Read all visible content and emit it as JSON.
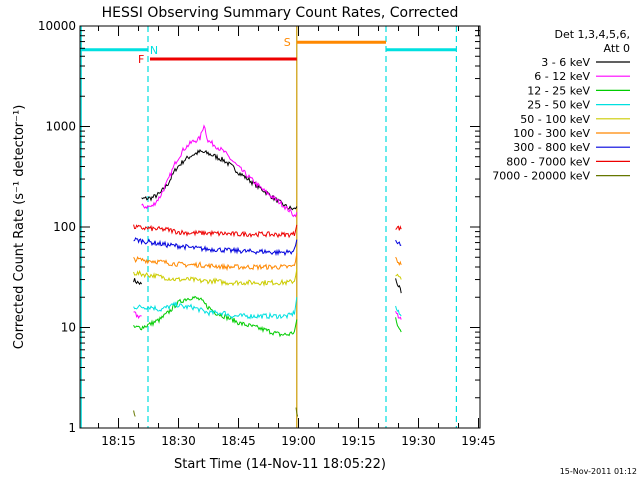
{
  "chart_data": {
    "type": "line",
    "title": "HESSI Observing Summary Count Rates, Corrected",
    "xlabel": "Start Time (14-Nov-11 18:05:22)",
    "ylabel": "Corrected Count Rate (s⁻¹ detector⁻¹)",
    "xlim_minutes": [
      0,
      100
    ],
    "ylim": [
      1,
      10000
    ],
    "yscale": "log",
    "x_ticks": [
      {
        "t": 9.63,
        "label": "18:15"
      },
      {
        "t": 24.63,
        "label": "18:30"
      },
      {
        "t": 39.63,
        "label": "18:45"
      },
      {
        "t": 54.63,
        "label": "19:00"
      },
      {
        "t": 69.63,
        "label": "19:15"
      },
      {
        "t": 84.63,
        "label": "19:30"
      },
      {
        "t": 99.63,
        "label": "19:45"
      }
    ],
    "y_ticks": [
      {
        "v": 1,
        "label": "1"
      },
      {
        "v": 10,
        "label": "10"
      },
      {
        "v": 100,
        "label": "100"
      },
      {
        "v": 1000,
        "label": "1000"
      },
      {
        "v": 10000,
        "label": "10000"
      }
    ],
    "legend_header": [
      "Det 1,3,4,5,6,",
      "Att 0"
    ],
    "legend_placement": "right",
    "timestamp": "15-Nov-2011 01:12",
    "series": [
      {
        "name": "3 - 6 keV",
        "color": "#000000",
        "segments": [
          [
            [
              13.4,
              30
            ],
            [
              14.4,
              28
            ],
            [
              15.4,
              27
            ]
          ],
          [
            [
              15.4,
              190
            ],
            [
              18,
              195
            ],
            [
              20,
              215
            ],
            [
              22,
              270
            ],
            [
              24,
              380
            ],
            [
              26,
              460
            ],
            [
              28,
              520
            ],
            [
              30,
              560
            ],
            [
              32,
              540
            ],
            [
              34,
              500
            ],
            [
              36,
              460
            ],
            [
              38,
              400
            ],
            [
              40,
              340
            ],
            [
              42,
              300
            ],
            [
              44,
              260
            ],
            [
              46,
              230
            ],
            [
              48,
              200
            ],
            [
              50,
              175
            ],
            [
              52,
              155
            ],
            [
              53.6,
              150
            ],
            [
              54.2,
              160
            ]
          ],
          [
            [
              78.9,
              30
            ],
            [
              79.6,
              26
            ],
            [
              80.3,
              22
            ]
          ]
        ]
      },
      {
        "name": "6 - 12 keV",
        "color": "#ff00ff",
        "segments": [
          [
            [
              13.4,
              14
            ],
            [
              14.4,
              13
            ],
            [
              15.4,
              13
            ]
          ],
          [
            [
              15.4,
              160
            ],
            [
              18,
              160
            ],
            [
              20,
              200
            ],
            [
              22,
              290
            ],
            [
              24,
              450
            ],
            [
              26,
              600
            ],
            [
              28,
              700
            ],
            [
              30,
              760
            ],
            [
              31,
              1050
            ],
            [
              32,
              720
            ],
            [
              34,
              640
            ],
            [
              36,
              560
            ],
            [
              38,
              460
            ],
            [
              40,
              380
            ],
            [
              42,
              320
            ],
            [
              44,
              270
            ],
            [
              46,
              230
            ],
            [
              48,
              200
            ],
            [
              50,
              175
            ],
            [
              52,
              150
            ],
            [
              53.6,
              130
            ],
            [
              54.2,
              140
            ]
          ],
          [
            [
              78.9,
              14
            ],
            [
              79.6,
              13
            ],
            [
              80.3,
              12
            ]
          ]
        ]
      },
      {
        "name": "12 - 25 keV",
        "color": "#00cc00",
        "segments": [
          [
            [
              13.4,
              10
            ],
            [
              15.4,
              10
            ],
            [
              18,
              11
            ],
            [
              20,
              12
            ],
            [
              22,
              14
            ],
            [
              24,
              17
            ],
            [
              26,
              19
            ],
            [
              28,
              20
            ],
            [
              30,
              19
            ],
            [
              32,
              16
            ],
            [
              34,
              14
            ],
            [
              36,
              13
            ],
            [
              38,
              12
            ],
            [
              40,
              11
            ],
            [
              42,
              10.5
            ],
            [
              44,
              10
            ],
            [
              46,
              9.5
            ],
            [
              48,
              9
            ],
            [
              50,
              8.5
            ],
            [
              52,
              8.5
            ],
            [
              53.6,
              9
            ],
            [
              54.2,
              12
            ]
          ],
          [
            [
              78.9,
              12
            ],
            [
              79.6,
              10
            ],
            [
              80.3,
              9
            ]
          ]
        ]
      },
      {
        "name": "25 - 50 keV",
        "color": "#00e0e0",
        "segments": [
          [
            [
              13.4,
              16
            ],
            [
              15.4,
              16
            ],
            [
              18,
              16
            ],
            [
              20,
              15
            ],
            [
              22,
              16
            ],
            [
              24,
              17
            ],
            [
              26,
              16
            ],
            [
              28,
              16
            ],
            [
              30,
              15
            ],
            [
              32,
              14
            ],
            [
              34,
              14
            ],
            [
              36,
              14
            ],
            [
              38,
              13
            ],
            [
              40,
              13
            ],
            [
              42,
              13
            ],
            [
              44,
              13
            ],
            [
              46,
              13
            ],
            [
              48,
              13
            ],
            [
              50,
              13
            ],
            [
              52,
              13
            ],
            [
              53.6,
              14
            ],
            [
              54.2,
              20
            ]
          ],
          [
            [
              78.9,
              16
            ],
            [
              79.6,
              14
            ],
            [
              80.3,
              13
            ]
          ]
        ]
      },
      {
        "name": "50 - 100 keV",
        "color": "#cccc00",
        "segments": [
          [
            [
              13.4,
              35
            ],
            [
              15.4,
              34
            ],
            [
              18,
              33
            ],
            [
              20,
              32
            ],
            [
              22,
              31
            ],
            [
              24,
              30
            ],
            [
              26,
              30
            ],
            [
              28,
              30
            ],
            [
              30,
              29
            ],
            [
              32,
              29
            ],
            [
              34,
              29
            ],
            [
              36,
              28
            ],
            [
              38,
              28
            ],
            [
              40,
              28
            ],
            [
              42,
              28
            ],
            [
              44,
              28
            ],
            [
              46,
              28
            ],
            [
              48,
              28
            ],
            [
              50,
              28
            ],
            [
              52,
              28
            ],
            [
              53.6,
              29
            ],
            [
              54.2,
              38
            ]
          ],
          [
            [
              78.9,
              34
            ],
            [
              79.6,
              32
            ],
            [
              80.3,
              30
            ]
          ]
        ]
      },
      {
        "name": "100 - 300 keV",
        "color": "#ff8800",
        "segments": [
          [
            [
              13.4,
              48
            ],
            [
              15.4,
              47
            ],
            [
              18,
              46
            ],
            [
              20,
              45
            ],
            [
              22,
              44
            ],
            [
              24,
              43
            ],
            [
              26,
              42
            ],
            [
              28,
              42
            ],
            [
              30,
              42
            ],
            [
              32,
              41
            ],
            [
              34,
              41
            ],
            [
              36,
              40
            ],
            [
              38,
              40
            ],
            [
              40,
              40
            ],
            [
              42,
              40
            ],
            [
              44,
              40
            ],
            [
              46,
              40
            ],
            [
              48,
              40
            ],
            [
              50,
              40
            ],
            [
              52,
              40
            ],
            [
              53.6,
              41
            ],
            [
              54.2,
              55
            ]
          ],
          [
            [
              78.9,
              48
            ],
            [
              79.6,
              45
            ],
            [
              80.3,
              42
            ]
          ]
        ]
      },
      {
        "name": "300 - 800 keV",
        "color": "#0000dd",
        "segments": [
          [
            [
              13.4,
              75
            ],
            [
              15.4,
              73
            ],
            [
              18,
              70
            ],
            [
              20,
              68
            ],
            [
              22,
              66
            ],
            [
              24,
              65
            ],
            [
              26,
              64
            ],
            [
              28,
              62
            ],
            [
              30,
              61
            ],
            [
              32,
              60
            ],
            [
              34,
              60
            ],
            [
              36,
              59
            ],
            [
              38,
              58
            ],
            [
              40,
              58
            ],
            [
              42,
              57
            ],
            [
              44,
              57
            ],
            [
              46,
              57
            ],
            [
              48,
              56
            ],
            [
              50,
              56
            ],
            [
              52,
              56
            ],
            [
              53.6,
              58
            ],
            [
              54.2,
              75
            ]
          ],
          [
            [
              78.9,
              75
            ],
            [
              79.6,
              70
            ],
            [
              80.3,
              66
            ]
          ]
        ]
      },
      {
        "name": "800 - 7000 keV",
        "color": "#ee0000",
        "segments": [
          [
            [
              13.4,
              100
            ],
            [
              15.4,
              98
            ],
            [
              18,
              96
            ],
            [
              20,
              95
            ],
            [
              22,
              94
            ],
            [
              24,
              90
            ],
            [
              26,
              88
            ],
            [
              28,
              87
            ],
            [
              30,
              87
            ],
            [
              32,
              87
            ],
            [
              34,
              86
            ],
            [
              36,
              86
            ],
            [
              38,
              85
            ],
            [
              40,
              85
            ],
            [
              42,
              85
            ],
            [
              44,
              85
            ],
            [
              46,
              85
            ],
            [
              48,
              84
            ],
            [
              50,
              84
            ],
            [
              52,
              84
            ],
            [
              53.6,
              85
            ],
            [
              54.2,
              105
            ]
          ],
          [
            [
              78.9,
              100
            ],
            [
              79.6,
              98
            ],
            [
              80.3,
              95
            ]
          ]
        ]
      },
      {
        "name": "7000 - 20000 keV",
        "color": "#667700",
        "segments": [
          [
            [
              13.4,
              1.5
            ],
            [
              13.8,
              1.3
            ]
          ],
          [
            [
              54.0,
              1.6
            ],
            [
              54.4,
              1.3
            ]
          ]
        ]
      }
    ],
    "spans": [
      {
        "id": "night-left",
        "label": "",
        "color": "#00e0e0",
        "x0": 0,
        "x1": 17.0,
        "y": 5800,
        "label_x": 0
      },
      {
        "id": "N",
        "label": "N",
        "color": "#00e0e0",
        "x0": 17.0,
        "x1": 17.0,
        "y": 5800,
        "label_x": 18.5
      },
      {
        "id": "F",
        "label": "F",
        "color": "#ee0000",
        "x0": 17.5,
        "x1": 54.2,
        "y": 4700,
        "label_x": 15.3
      },
      {
        "id": "S",
        "label": "S",
        "color": "#ff8800",
        "x0": 54.2,
        "x1": 76.5,
        "y": 6900,
        "label_x": 51.8
      },
      {
        "id": "night-right",
        "label": "",
        "color": "#00e0e0",
        "x0": 76.5,
        "x1": 94.1,
        "y": 5800,
        "label_x": 0
      }
    ],
    "vlines": [
      {
        "t": 17.0,
        "color": "#00e0e0",
        "dashed": true
      },
      {
        "t": 76.5,
        "color": "#00e0e0",
        "dashed": true
      },
      {
        "t": 94.1,
        "color": "#00e0e0",
        "dashed": true
      },
      {
        "t": 0.3,
        "color": "#00e0e0",
        "dashed": false
      },
      {
        "t": 54.2,
        "color": "#cc9900",
        "dashed": false
      }
    ]
  }
}
